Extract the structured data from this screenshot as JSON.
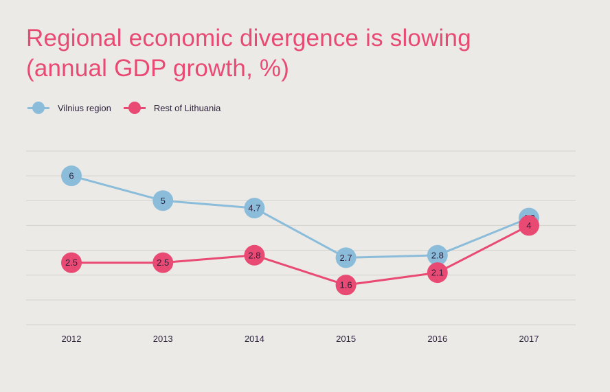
{
  "title_lines": [
    "Regional economic divergence is slowing",
    "(annual GDP growth, %)"
  ],
  "colors": {
    "vilnius": "#8bbddb",
    "rest": "#e84a73",
    "grid": "#d3d2cd",
    "text": "#2b1f3a",
    "title": "#e84a73",
    "background": "#ebeae6"
  },
  "chart_data": {
    "type": "line",
    "title": "Regional economic divergence is slowing (annual GDP growth, %)",
    "x": [
      "2012",
      "2013",
      "2014",
      "2015",
      "2016",
      "2017"
    ],
    "series": [
      {
        "name": "Vilnius region",
        "values": [
          6,
          5,
          4.7,
          2.7,
          2.8,
          4.3
        ],
        "color": "#8bbddb"
      },
      {
        "name": "Rest of Lithuania",
        "values": [
          2.5,
          2.5,
          2.8,
          1.6,
          2.1,
          4
        ],
        "color": "#e84a73"
      }
    ],
    "ylim": [
      0,
      7
    ],
    "grid": true,
    "legend": "top-left",
    "data_labels": true,
    "ytick_labels_shown": false
  }
}
